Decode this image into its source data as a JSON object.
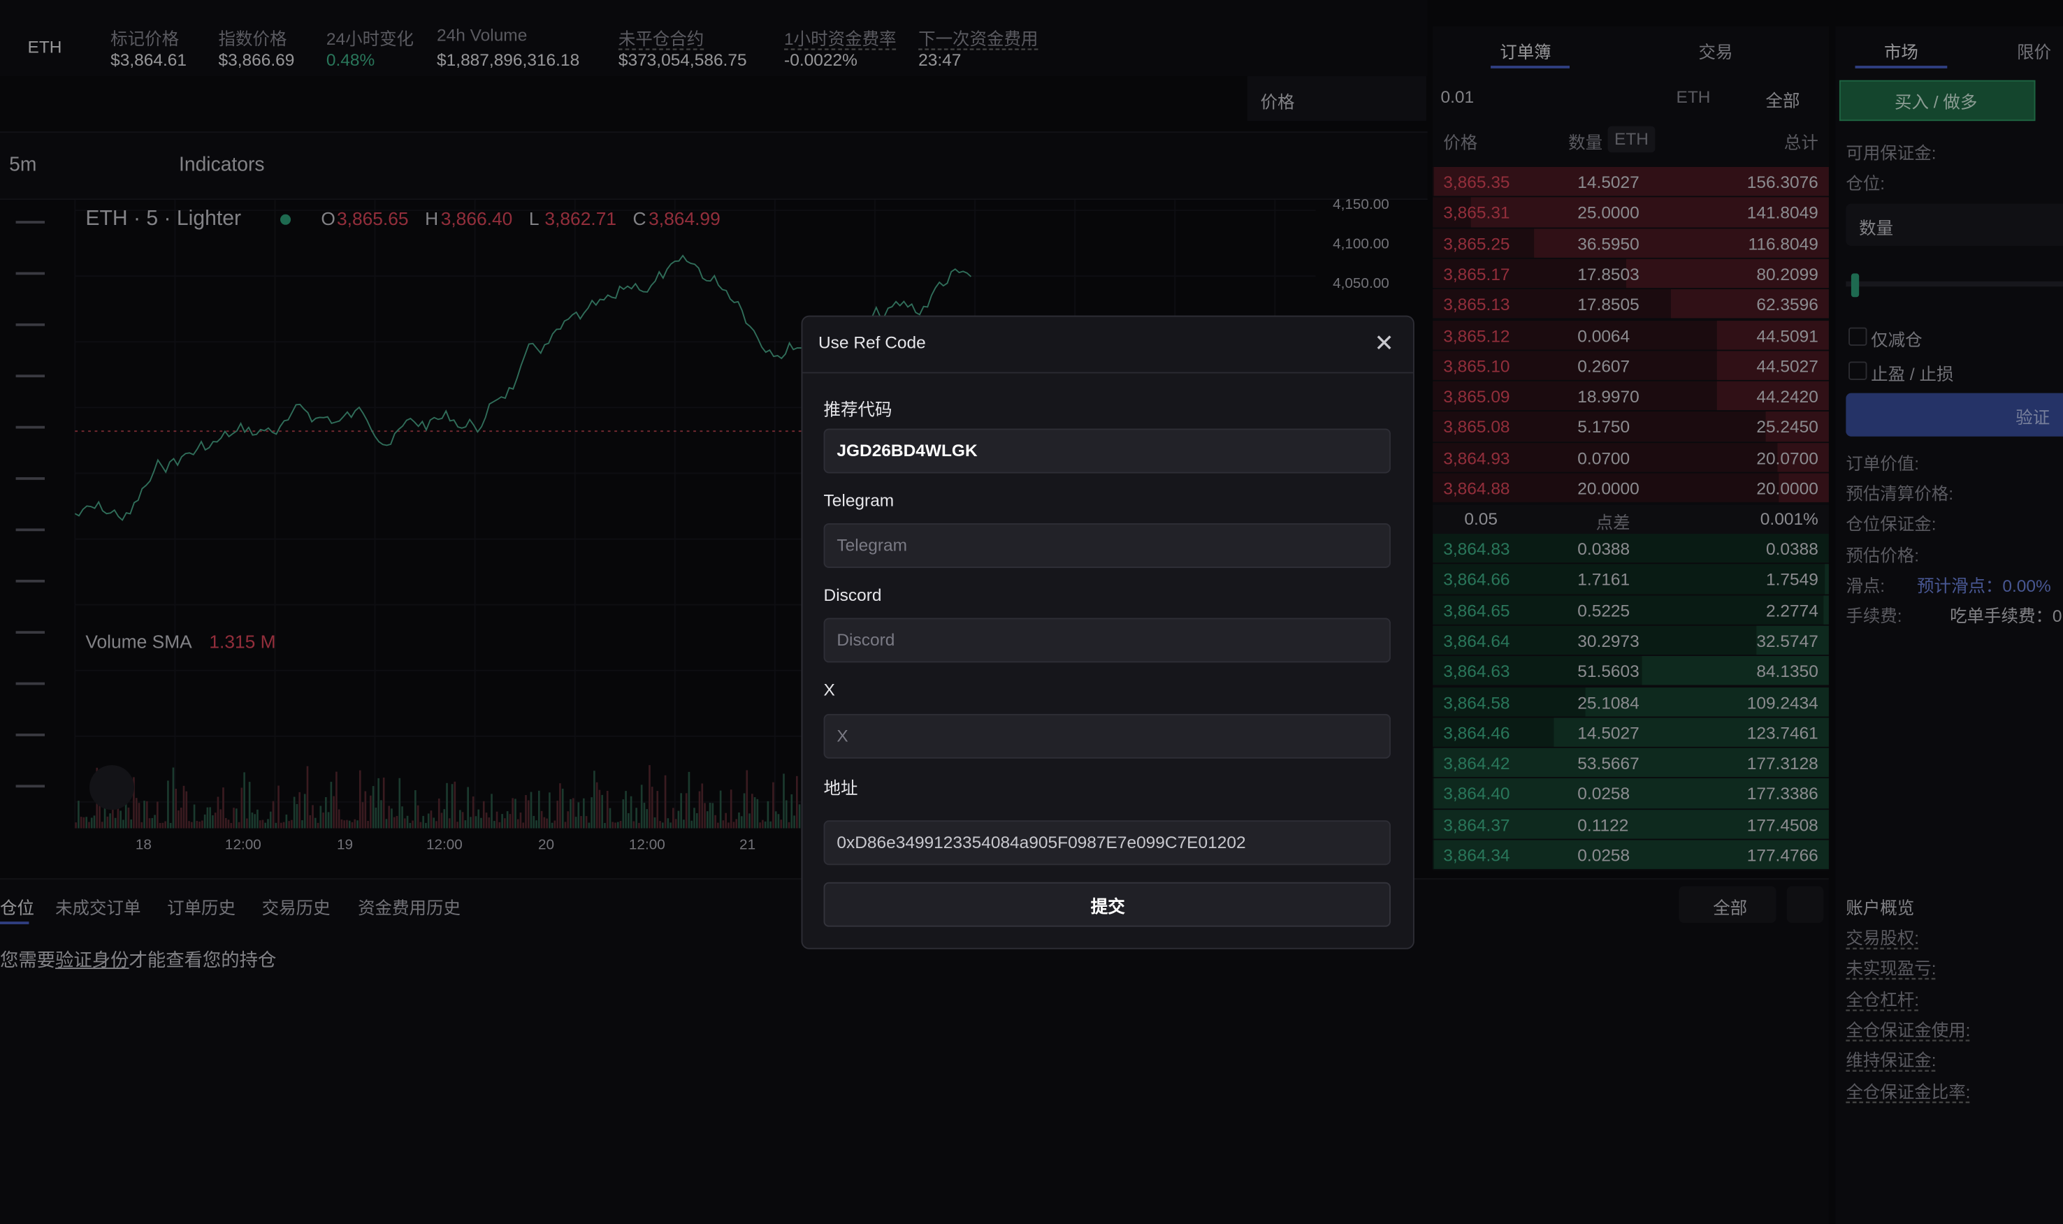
{
  "header": {
    "symbol": "ETH",
    "stats": [
      {
        "label": "标记价格",
        "value": "$3,864.61"
      },
      {
        "label": "指数价格",
        "value": "$3,866.69"
      },
      {
        "label": "24小时变化",
        "value": "0.48%"
      },
      {
        "label": "24h Volume",
        "value": "$1,887,896,316.18"
      },
      {
        "label": "未平仓合约",
        "value": "$373,054,586.75"
      },
      {
        "label": "1小时资金费率",
        "value": "-0.0022%"
      },
      {
        "label": "下一次资金费用",
        "value": "23:47"
      }
    ]
  },
  "chart": {
    "price_select": "价格",
    "interval": "5m",
    "indicators": "Indicators",
    "legend_title": "ETH · 5 · Lighter",
    "ohlc": [
      {
        "key": "O",
        "value": "3,865.65"
      },
      {
        "key": "H",
        "value": "3,866.40"
      },
      {
        "key": "L",
        "value": "3,862.71"
      },
      {
        "key": "C",
        "value": "3,864.99"
      }
    ],
    "price_axis": [
      "4,150.00",
      "4,100.00",
      "4,050.00"
    ],
    "volume_label": "Volume SMA",
    "volume_value": "1.315 M",
    "time_axis": [
      "18",
      "12:00",
      "19",
      "12:00",
      "20",
      "12:00",
      "21"
    ]
  },
  "positions": {
    "tabs": [
      "仓位",
      "未成交订单",
      "订单历史",
      "交易历史",
      "资金费用历史"
    ],
    "filter": "全部",
    "message_before": "您需要",
    "message_link": "验证身份",
    "message_after": "才能查看您的持仓"
  },
  "orderbook": {
    "tabs": [
      "订单簿",
      "交易"
    ],
    "tick": "0.01",
    "asset": "ETH",
    "filter": "全部",
    "headers": {
      "price": "价格",
      "size": "数量",
      "unit": "ETH",
      "total": "总计"
    },
    "asks": [
      [
        "3,865.35",
        "14.5027",
        "156.3076"
      ],
      [
        "3,865.31",
        "25.0000",
        "141.8049"
      ],
      [
        "3,865.25",
        "36.5950",
        "116.8049"
      ],
      [
        "3,865.17",
        "17.8503",
        "80.2099"
      ],
      [
        "3,865.13",
        "17.8505",
        "62.3596"
      ],
      [
        "3,865.12",
        "0.0064",
        "44.5091"
      ],
      [
        "3,865.10",
        "0.2607",
        "44.5027"
      ],
      [
        "3,865.09",
        "18.9970",
        "44.2420"
      ],
      [
        "3,865.08",
        "5.1750",
        "25.2450"
      ],
      [
        "3,864.93",
        "0.0700",
        "20.0700"
      ],
      [
        "3,864.88",
        "20.0000",
        "20.0000"
      ]
    ],
    "spread": [
      "0.05",
      "点差",
      "0.001%"
    ],
    "bids": [
      [
        "3,864.83",
        "0.0388",
        "0.0388"
      ],
      [
        "3,864.66",
        "1.7161",
        "1.7549"
      ],
      [
        "3,864.65",
        "0.5225",
        "2.2774"
      ],
      [
        "3,864.64",
        "30.2973",
        "32.5747"
      ],
      [
        "3,864.63",
        "51.5603",
        "84.1350"
      ],
      [
        "3,864.58",
        "25.1084",
        "109.2434"
      ],
      [
        "3,864.46",
        "14.5027",
        "123.7461"
      ],
      [
        "3,864.42",
        "53.5667",
        "177.3128"
      ],
      [
        "3,864.40",
        "0.0258",
        "177.3386"
      ],
      [
        "3,864.37",
        "0.1122",
        "177.4508"
      ],
      [
        "3,864.34",
        "0.0258",
        "177.4766"
      ]
    ]
  },
  "trade": {
    "tabs": [
      "市场",
      "限价"
    ],
    "buy": "买入 / 做多",
    "available": "可用保证金:",
    "position": "仓位:",
    "size_placeholder": "数量",
    "reduce_only": "仅减仓",
    "tp_sl": "止盈 / 止损",
    "verify": "验证",
    "order_value": "订单价值:",
    "liq_price": "预估清算价格:",
    "margin": "仓位保证金:",
    "est_price": "预估价格:",
    "slippage": "滑点:",
    "slippage_value": "预计滑点：0.00%",
    "fee": "手续费:",
    "fee_value": "吃单手续费：0"
  },
  "account": {
    "title": "账户概览",
    "items": [
      "交易股权:",
      "未实现盈亏:",
      "全仓杠杆:",
      "全仓保证金使用:",
      "维持保证金:",
      "全仓保证金比率:"
    ]
  },
  "modal": {
    "title": "Use Ref Code",
    "fields": [
      {
        "label": "推荐代码",
        "value": "JGD26BD4WLGK"
      },
      {
        "label": "Telegram",
        "placeholder": "Telegram"
      },
      {
        "label": "Discord",
        "placeholder": "Discord"
      },
      {
        "label": "X",
        "placeholder": "X"
      },
      {
        "label": "地址",
        "value": "0xD86e3499123354084a905F0987E7e099C7E01202"
      }
    ],
    "submit": "提交"
  }
}
